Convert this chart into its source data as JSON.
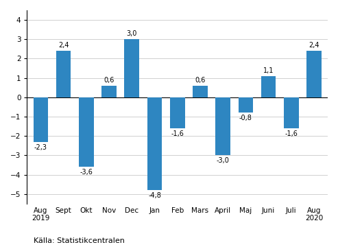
{
  "categories": [
    "Aug\n2019",
    "Sept",
    "Okt",
    "Nov",
    "Dec",
    "Jan",
    "Feb",
    "Mars",
    "April",
    "Maj",
    "Juni",
    "Juli",
    "Aug\n2020"
  ],
  "values": [
    -2.3,
    2.4,
    -3.6,
    0.6,
    3.0,
    -4.8,
    -1.6,
    0.6,
    -3.0,
    -0.8,
    1.1,
    -1.6,
    2.4
  ],
  "bar_color": "#2e86c1",
  "ylim": [
    -5.5,
    4.5
  ],
  "yticks": [
    -5,
    -4,
    -3,
    -2,
    -1,
    0,
    1,
    2,
    3,
    4
  ],
  "label_fontsize": 7,
  "tick_fontsize": 7.5,
  "source_text": "Källa: Statistikcentralen",
  "background_color": "#ffffff",
  "grid_color": "#d0d0d0"
}
